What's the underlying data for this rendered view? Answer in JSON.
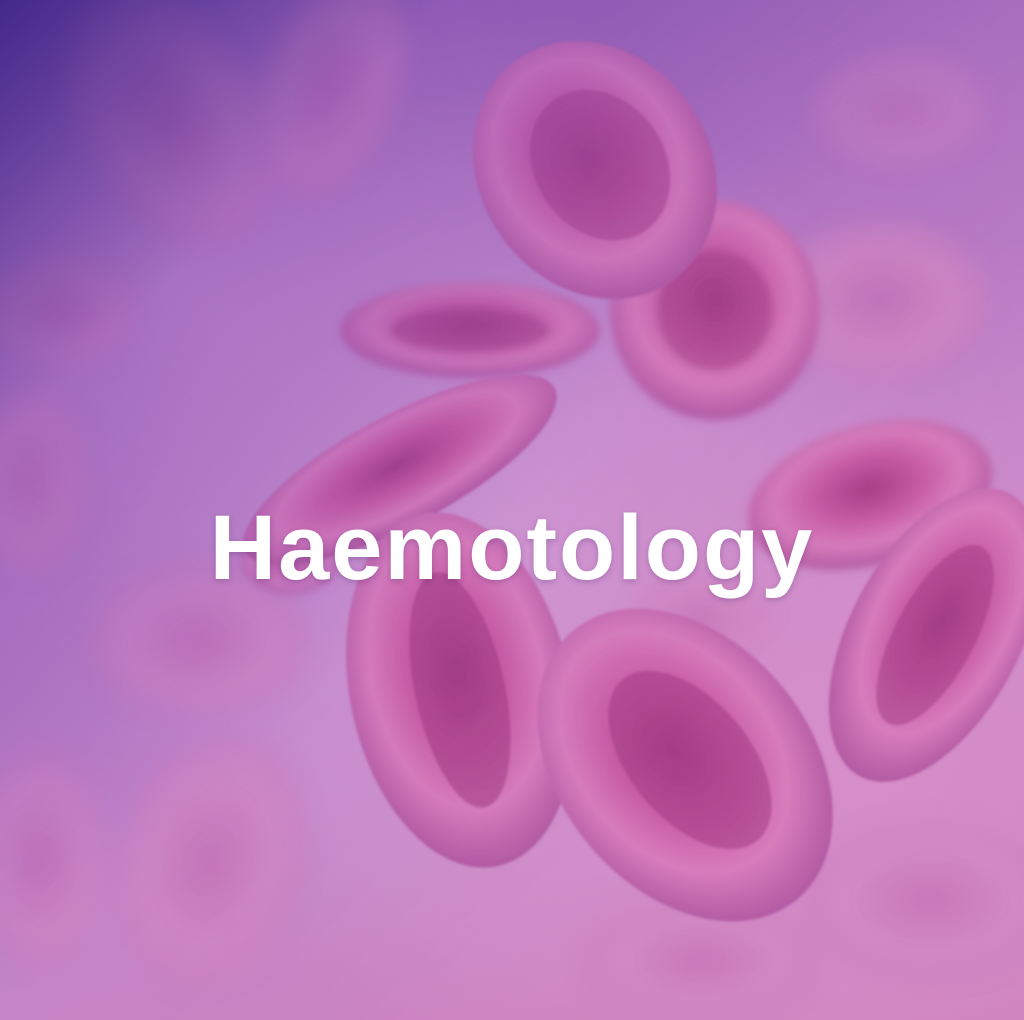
{
  "title": "Haemotology",
  "colors": {
    "text": "#ffffff",
    "cell": "#c2569d",
    "overlay": "#341e82"
  }
}
